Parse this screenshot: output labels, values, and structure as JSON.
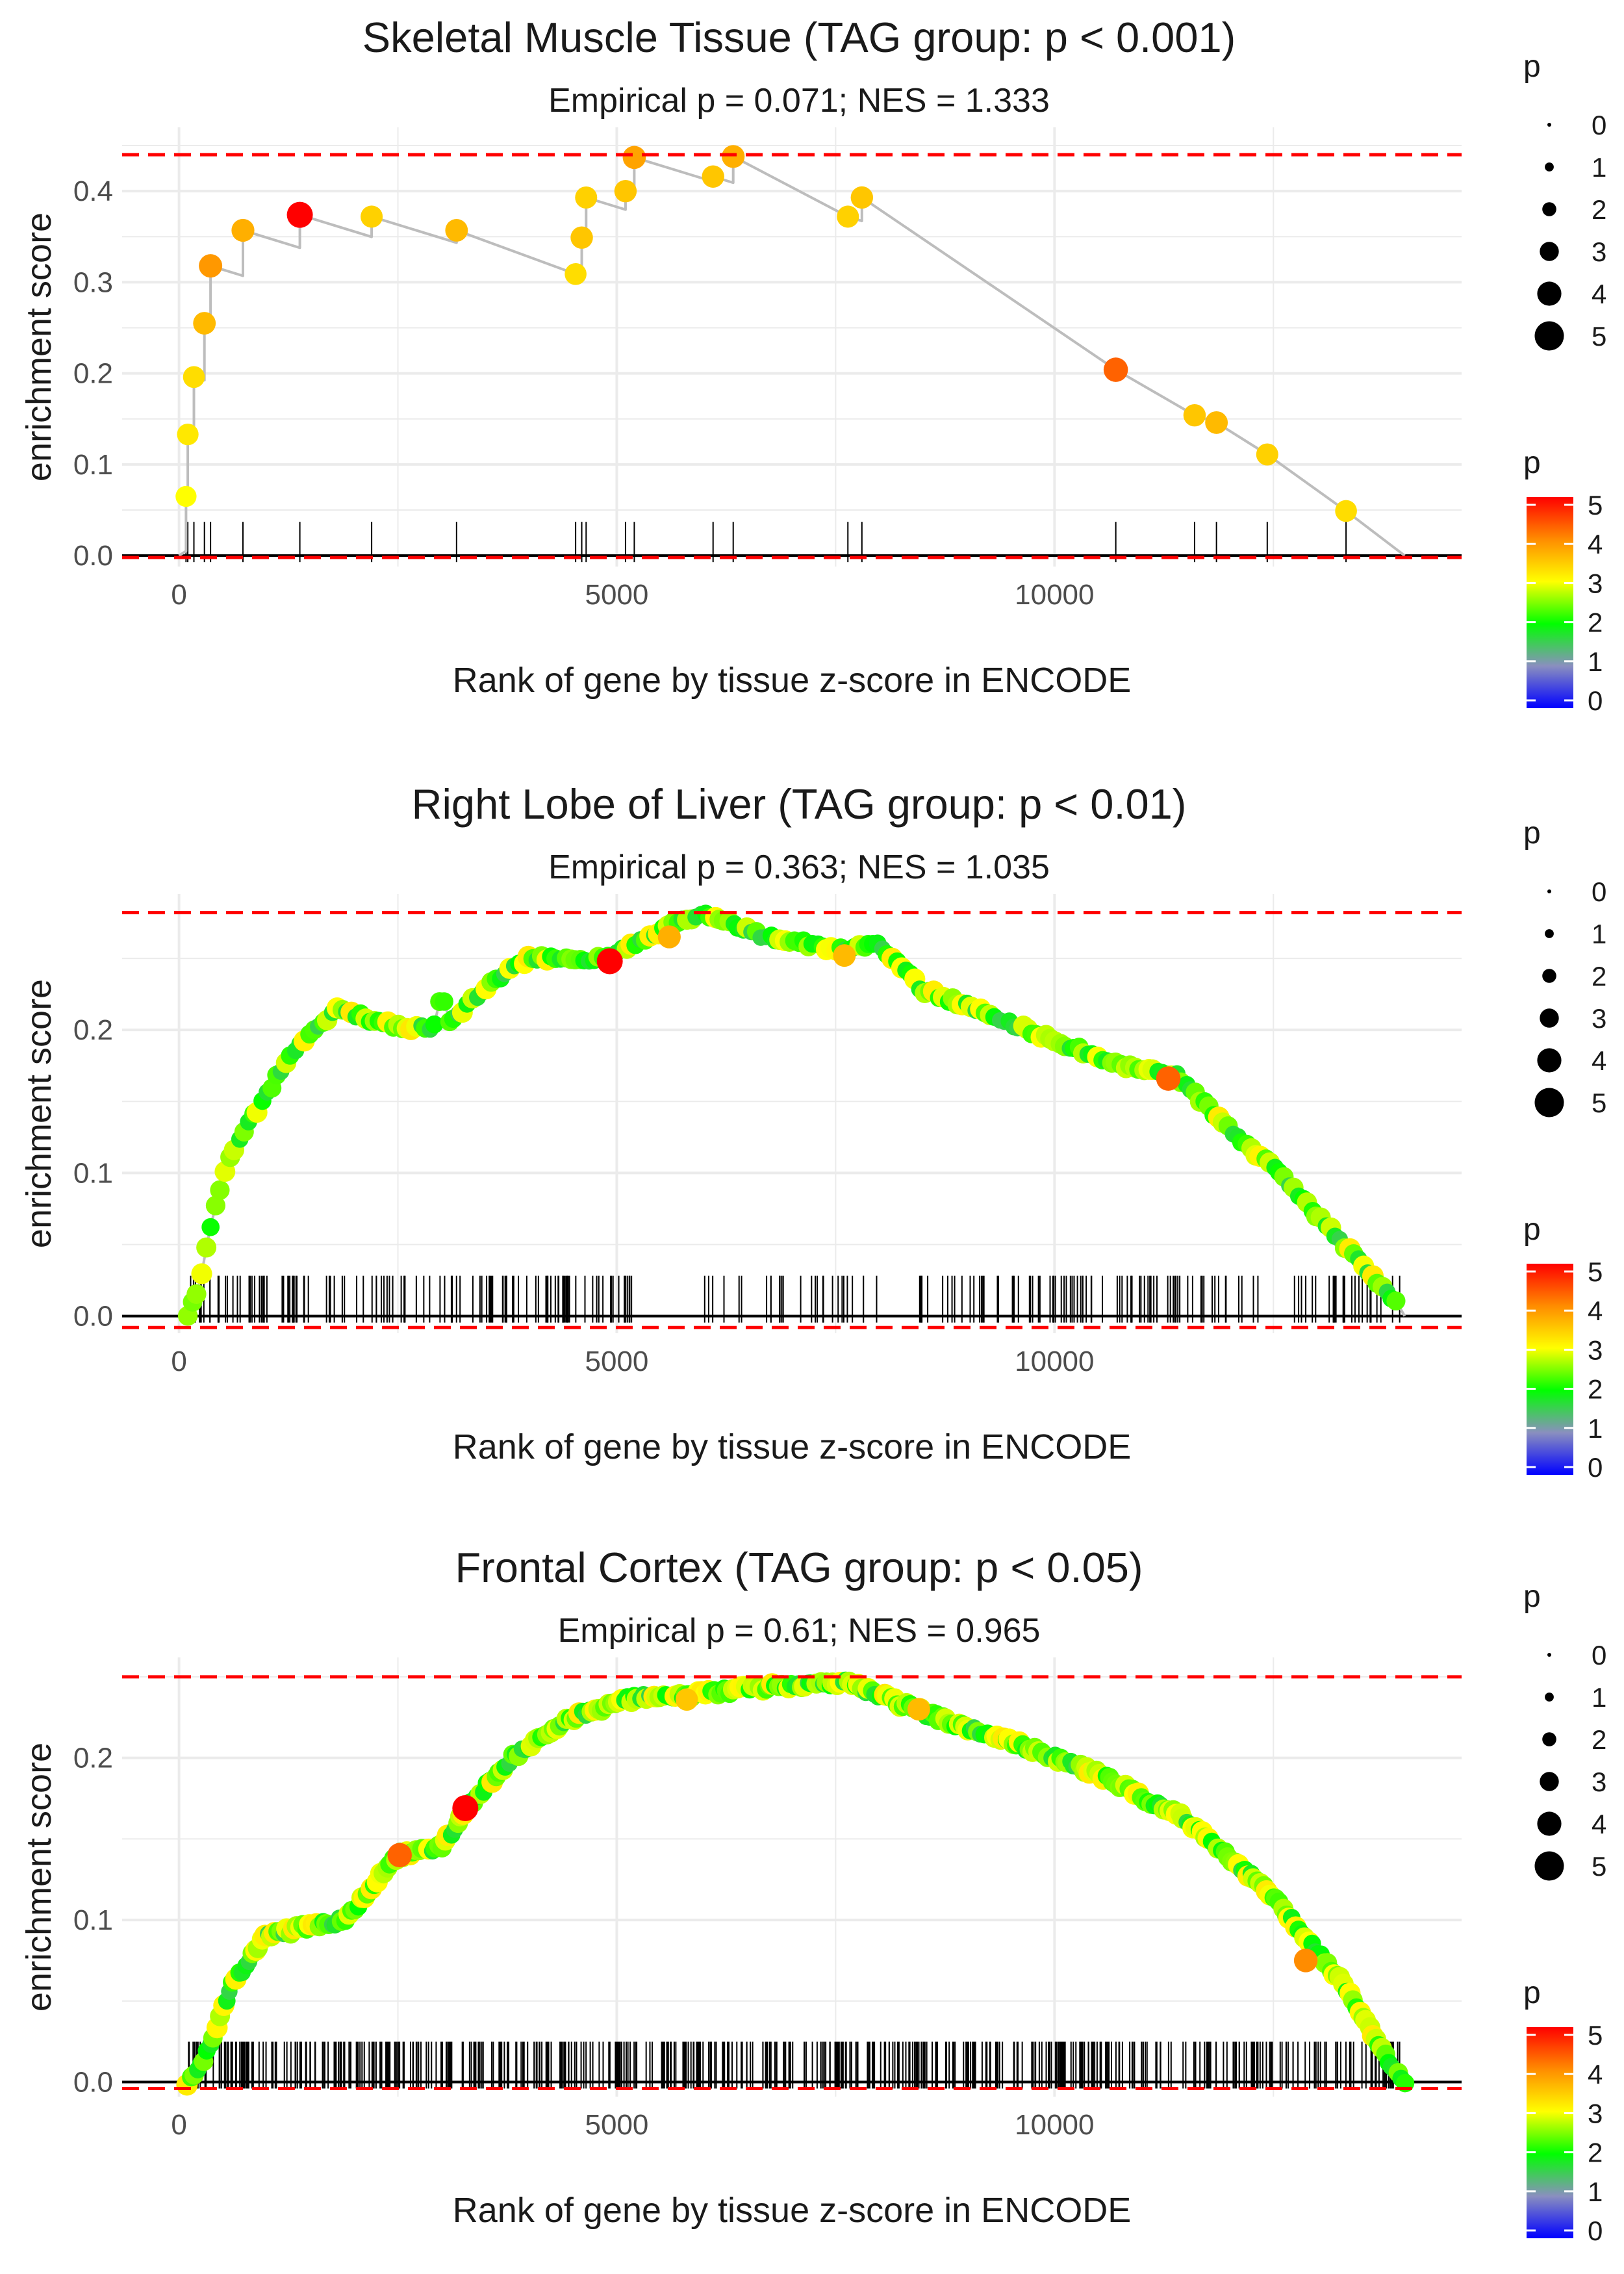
{
  "figure": {
    "panels_count": 3
  },
  "colors": {
    "threshold_line": "#ff0000",
    "es_line": "#bdbdbd",
    "grid": "#ebebeb",
    "rug": "#000000",
    "baseline": "#000000",
    "axis_text": "#4d4d4d",
    "title_text": "#1a1a1a",
    "gradient": [
      "#0000ff",
      "#8a8fbf",
      "#00ff00",
      "#ffff00",
      "#ff8c00",
      "#ff0000"
    ]
  },
  "legend": {
    "size_title": "p",
    "size_items": [
      "0",
      "1",
      "2",
      "3",
      "4",
      "5"
    ],
    "color_title": "p",
    "color_ticks": [
      "0",
      "1",
      "2",
      "3",
      "4",
      "5"
    ]
  },
  "chart_data": [
    {
      "type": "scatter",
      "title": "Skeletal Muscle Tissue (TAG group: p < 0.001)",
      "subtitle": "Empirical p = 0.071; NES = 1.333",
      "xlabel": "Rank of gene by tissue z-score in ENCODE",
      "ylabel": "enrichment score",
      "xlim": [
        -650,
        14650
      ],
      "ylim": [
        -0.012,
        0.47
      ],
      "xticks": [
        0,
        5000,
        10000
      ],
      "xtick_labels": [
        "0",
        "5000",
        "10000"
      ],
      "yticks": [
        0.0,
        0.1,
        0.2,
        0.3,
        0.4
      ],
      "ytick_labels": [
        "0.0",
        "0.1",
        "0.2",
        "0.3",
        "0.4"
      ],
      "threshold_upper": 0.44,
      "threshold_lower": -0.002,
      "end_rank": 14000,
      "generator": "points",
      "points": [
        [
          80,
          0.065,
          3.0
        ],
        [
          100,
          0.133,
          3.2
        ],
        [
          170,
          0.196,
          3.3
        ],
        [
          290,
          0.255,
          3.6
        ],
        [
          360,
          0.318,
          3.9
        ],
        [
          730,
          0.357,
          3.7
        ],
        [
          1380,
          0.374,
          5.0
        ],
        [
          2200,
          0.372,
          3.4
        ],
        [
          3170,
          0.357,
          3.6
        ],
        [
          4530,
          0.309,
          3.3
        ],
        [
          4600,
          0.349,
          3.5
        ],
        [
          4650,
          0.393,
          3.4
        ],
        [
          5100,
          0.4,
          3.5
        ],
        [
          5200,
          0.437,
          3.8
        ],
        [
          6100,
          0.416,
          3.5
        ],
        [
          6330,
          0.438,
          3.7
        ],
        [
          7640,
          0.372,
          3.4
        ],
        [
          7800,
          0.393,
          3.5
        ],
        [
          10700,
          0.204,
          4.3
        ],
        [
          11600,
          0.154,
          3.5
        ],
        [
          11850,
          0.146,
          3.6
        ],
        [
          12430,
          0.111,
          3.4
        ],
        [
          13330,
          0.049,
          3.3
        ]
      ]
    },
    {
      "type": "scatter",
      "title": "Right Lobe of Liver (TAG group: p < 0.01)",
      "subtitle": "Empirical p = 0.363; NES = 1.035",
      "xlabel": "Rank of gene by tissue z-score in ENCODE",
      "ylabel": "enrichment score",
      "xlim": [
        -650,
        14650
      ],
      "ylim": [
        -0.012,
        0.295
      ],
      "xticks": [
        0,
        5000,
        10000
      ],
      "xtick_labels": [
        "0",
        "5000",
        "10000"
      ],
      "yticks": [
        0.0,
        0.1,
        0.2
      ],
      "ytick_labels": [
        "0.0",
        "0.1",
        "0.2"
      ],
      "threshold_upper": 0.282,
      "threshold_lower": -0.008,
      "end_rank": 14000,
      "generator": "curve",
      "seed": 11,
      "n_points": 260,
      "curve": [
        [
          100,
          0.0
        ],
        [
          230,
          0.02
        ],
        [
          380,
          0.07
        ],
        [
          600,
          0.115
        ],
        [
          900,
          0.145
        ],
        [
          1300,
          0.185
        ],
        [
          1800,
          0.215
        ],
        [
          2300,
          0.205
        ],
        [
          2900,
          0.2
        ],
        [
          3000,
          0.225
        ],
        [
          3100,
          0.205
        ],
        [
          3500,
          0.23
        ],
        [
          4000,
          0.25
        ],
        [
          4900,
          0.25
        ],
        [
          5500,
          0.27
        ],
        [
          6000,
          0.282
        ],
        [
          6700,
          0.265
        ],
        [
          7500,
          0.257
        ],
        [
          8000,
          0.26
        ],
        [
          8500,
          0.228
        ],
        [
          9300,
          0.21
        ],
        [
          10100,
          0.19
        ],
        [
          10800,
          0.175
        ],
        [
          11400,
          0.168
        ],
        [
          12000,
          0.13
        ],
        [
          12600,
          0.098
        ],
        [
          13300,
          0.05
        ],
        [
          13900,
          0.01
        ]
      ],
      "rug_segments": [
        [
          130,
          5200,
          125
        ],
        [
          5800,
          8000,
          28
        ],
        [
          8400,
          13950,
          110
        ]
      ],
      "highlights": [
        [
          4920,
          0.248,
          5.0
        ],
        [
          11300,
          0.166,
          4.3
        ],
        [
          5600,
          0.265,
          3.7
        ],
        [
          7600,
          0.252,
          3.6
        ]
      ]
    },
    {
      "type": "scatter",
      "title": "Frontal Cortex (TAG group: p < 0.05)",
      "subtitle": "Empirical p = 0.61; NES = 0.965",
      "xlabel": "Rank of gene by tissue z-score in ENCODE",
      "ylabel": "enrichment score",
      "xlim": [
        -650,
        14650
      ],
      "ylim": [
        -0.009,
        0.262
      ],
      "xticks": [
        0,
        5000,
        10000
      ],
      "xtick_labels": [
        "0",
        "5000",
        "10000"
      ],
      "yticks": [
        0.0,
        0.1,
        0.2
      ],
      "ytick_labels": [
        "0.0",
        "0.1",
        "0.2"
      ],
      "threshold_upper": 0.25,
      "threshold_lower": -0.004,
      "end_rank": 14000,
      "generator": "curve",
      "seed": 7,
      "n_points": 380,
      "curve": [
        [
          100,
          0.0
        ],
        [
          300,
          0.015
        ],
        [
          600,
          0.06
        ],
        [
          1000,
          0.09
        ],
        [
          1400,
          0.095
        ],
        [
          1900,
          0.1
        ],
        [
          2500,
          0.14
        ],
        [
          3000,
          0.145
        ],
        [
          3300,
          0.17
        ],
        [
          3800,
          0.2
        ],
        [
          4500,
          0.225
        ],
        [
          5200,
          0.237
        ],
        [
          6000,
          0.24
        ],
        [
          7000,
          0.245
        ],
        [
          7600,
          0.247
        ],
        [
          8500,
          0.228
        ],
        [
          9500,
          0.21
        ],
        [
          10500,
          0.19
        ],
        [
          11500,
          0.162
        ],
        [
          12500,
          0.115
        ],
        [
          13300,
          0.06
        ],
        [
          13800,
          0.015
        ],
        [
          14000,
          0.0
        ]
      ],
      "rug_segments": [
        [
          100,
          13950,
          560
        ]
      ],
      "highlights": [
        [
          3270,
          0.169,
          5.0
        ],
        [
          2520,
          0.14,
          4.3
        ],
        [
          12870,
          0.075,
          4.0
        ],
        [
          8450,
          0.23,
          3.6
        ],
        [
          5800,
          0.236,
          3.5
        ]
      ]
    }
  ]
}
